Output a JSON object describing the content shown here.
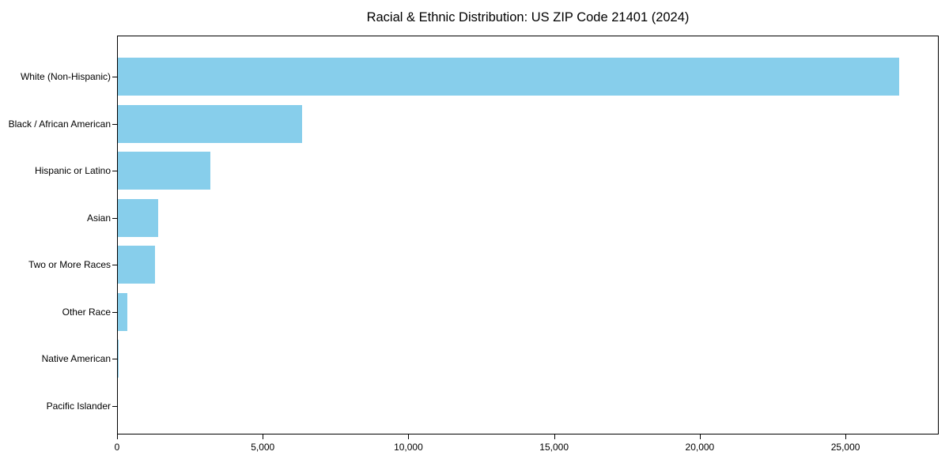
{
  "chart_data": {
    "type": "bar",
    "orientation": "horizontal",
    "title": "Racial & Ethnic Distribution: US ZIP Code 21401 (2024)",
    "categories": [
      "White (Non-Hispanic)",
      "Black / African American",
      "Hispanic or Latino",
      "Asian",
      "Two or More Races",
      "Other Race",
      "Native American",
      "Pacific Islander"
    ],
    "values": [
      26850,
      6350,
      3200,
      1410,
      1300,
      350,
      50,
      20
    ],
    "xlabel": "",
    "ylabel": "",
    "xlim": [
      0,
      28200
    ],
    "x_ticks": [
      0,
      5000,
      10000,
      15000,
      20000,
      25000
    ],
    "x_tick_labels": [
      "0",
      "5,000",
      "10,000",
      "15,000",
      "20,000",
      "25,000"
    ],
    "grid": false,
    "legend": null,
    "bar_color": "#87CEEB",
    "frame_color": "#000000",
    "text_color": "#000000"
  }
}
